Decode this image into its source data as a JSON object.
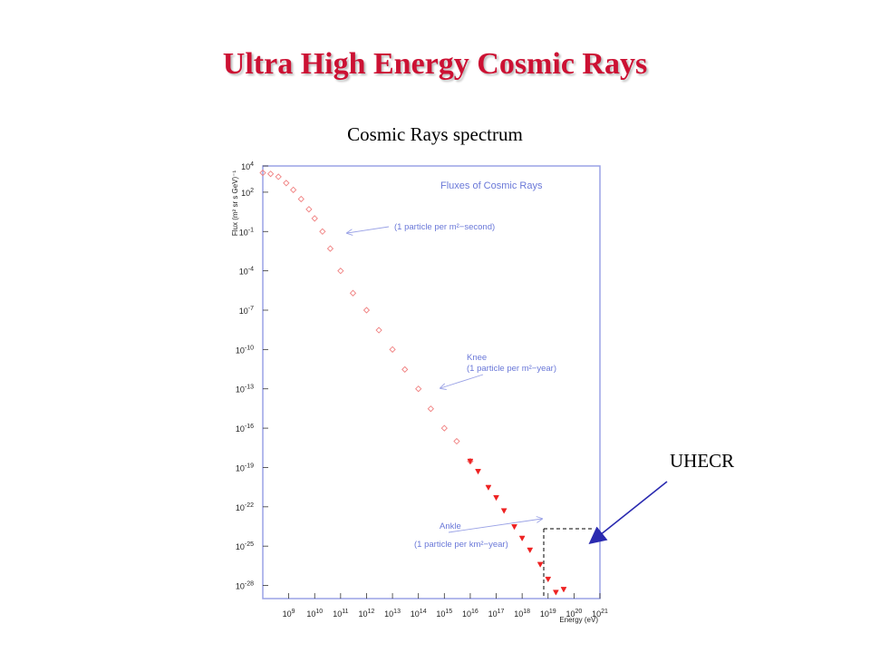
{
  "slide": {
    "title": "Ultra High Energy Cosmic Rays",
    "caption": "Cosmic Rays spectrum",
    "side_label": "UHECR"
  },
  "colors": {
    "title": "#cc1133",
    "frame": "#9aa2e6",
    "annotation_text": "#6a78d8",
    "data": "#ee2222",
    "data_light": "#f08080",
    "arrow": "#2a2ab0"
  },
  "chart_data": {
    "type": "scatter",
    "title": "Fluxes of Cosmic Rays",
    "xlabel": "Energy (eV)",
    "ylabel": "Flux (m² sr s GeV)⁻¹",
    "x_scale": "log",
    "y_scale": "log",
    "xlim": [
      100000000.0,
      1e+21
    ],
    "ylim": [
      1e-29,
      10000.0
    ],
    "x_tick_labels": [
      {
        "base": "10",
        "exp": "9",
        "value": 1000000000.0
      },
      {
        "base": "10",
        "exp": "10",
        "value": 10000000000.0
      },
      {
        "base": "10",
        "exp": "11",
        "value": 100000000000.0
      },
      {
        "base": "10",
        "exp": "12",
        "value": 1000000000000.0
      },
      {
        "base": "10",
        "exp": "13",
        "value": 10000000000000.0
      },
      {
        "base": "10",
        "exp": "14",
        "value": 100000000000000.0
      },
      {
        "base": "10",
        "exp": "15",
        "value": 1000000000000000.0
      },
      {
        "base": "10",
        "exp": "16",
        "value": 1e+16
      },
      {
        "base": "10",
        "exp": "17",
        "value": 1e+17
      },
      {
        "base": "10",
        "exp": "18",
        "value": 1e+18
      },
      {
        "base": "10",
        "exp": "19",
        "value": 1e+19
      },
      {
        "base": "10",
        "exp": "20",
        "value": 1e+20
      },
      {
        "base": "10",
        "exp": "21",
        "value": 1e+21
      }
    ],
    "y_tick_labels": [
      {
        "base": "10",
        "exp": "4",
        "value": 10000.0
      },
      {
        "base": "10",
        "exp": "2",
        "value": 100.0
      },
      {
        "base": "10",
        "exp": "-1",
        "value": 0.1
      },
      {
        "base": "10",
        "exp": "-4",
        "value": 0.0001
      },
      {
        "base": "10",
        "exp": "-7",
        "value": 1e-07
      },
      {
        "base": "10",
        "exp": "-10",
        "value": 1e-10
      },
      {
        "base": "10",
        "exp": "-13",
        "value": 1e-13
      },
      {
        "base": "10",
        "exp": "-16",
        "value": 1e-16
      },
      {
        "base": "10",
        "exp": "-19",
        "value": 1e-19
      },
      {
        "base": "10",
        "exp": "-22",
        "value": 1e-22
      },
      {
        "base": "10",
        "exp": "-25",
        "value": 1e-25
      },
      {
        "base": "10",
        "exp": "-28",
        "value": 1e-28
      }
    ],
    "grid": false,
    "legend": "none",
    "series": [
      {
        "marker": "open-diamond",
        "points": [
          [
            100000000.0,
            3000.0
          ],
          [
            200000000.0,
            2500.0
          ],
          [
            400000000.0,
            1500.0
          ],
          [
            800000000.0,
            500.0
          ],
          [
            1500000000.0,
            150.0
          ],
          [
            3000000000.0,
            30.0
          ],
          [
            6000000000.0,
            5
          ],
          [
            10000000000.0,
            1
          ],
          [
            20000000000.0,
            0.1
          ],
          [
            40000000000.0,
            0.005
          ],
          [
            100000000000.0,
            0.0001
          ],
          [
            300000000000.0,
            2e-06
          ],
          [
            1000000000000.0,
            1e-07
          ],
          [
            3000000000000.0,
            3e-09
          ],
          [
            10000000000000.0,
            1e-10
          ],
          [
            30000000000000.0,
            3e-12
          ],
          [
            100000000000000.0,
            1e-13
          ],
          [
            300000000000000.0,
            3e-15
          ],
          [
            1000000000000000.0,
            1e-16
          ],
          [
            3000000000000000.0,
            1e-17
          ],
          [
            1e+16,
            3e-19
          ]
        ]
      },
      {
        "marker": "filled-triangle",
        "points": [
          [
            1e+16,
            3e-19
          ],
          [
            2e+16,
            5e-20
          ],
          [
            5e+16,
            3e-21
          ],
          [
            1e+17,
            5e-22
          ],
          [
            2e+17,
            5e-23
          ],
          [
            5e+17,
            3e-24
          ],
          [
            1e+18,
            4e-25
          ],
          [
            2e+18,
            5e-26
          ],
          [
            5e+18,
            4e-27
          ],
          [
            1e+19,
            3e-28
          ],
          [
            2e+19,
            3e-29
          ],
          [
            4e+19,
            5e-29
          ]
        ]
      }
    ],
    "annotations": [
      {
        "line1": "(1 particle per m²−second)",
        "line2": "",
        "x": 100000000000.0,
        "y": 0.0001
      },
      {
        "line1": "Knee",
        "line2": "(1 particle per m²−year)",
        "x": 3000000000000000.0,
        "y": 1e-16
      },
      {
        "line1": "Ankle",
        "line2": "(1 particle per km²−year)",
        "x": 3e+18,
        "y": 1e-27
      }
    ]
  }
}
